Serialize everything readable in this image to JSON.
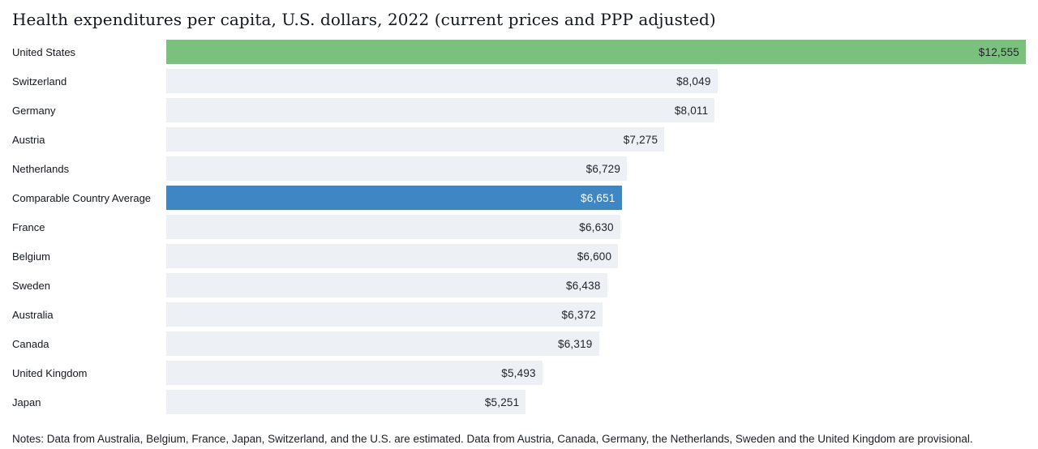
{
  "title": "Health expenditures per capita, U.S. dollars, 2022 (current prices and PPP adjusted)",
  "notes": "Notes: Data from Australia, Belgium, France, Japan, Switzerland, and the U.S. are estimated. Data from Austria, Canada, Germany, the Netherlands, Sweden and the United Kingdom are provisional.",
  "chart_data": {
    "type": "bar",
    "orientation": "horizontal",
    "title": "Health expenditures per capita, U.S. dollars, 2022 (current prices and PPP adjusted)",
    "categories": [
      "United States",
      "Switzerland",
      "Germany",
      "Austria",
      "Netherlands",
      "Comparable Country Average",
      "France",
      "Belgium",
      "Sweden",
      "Australia",
      "Canada",
      "United Kingdom",
      "Japan"
    ],
    "values": [
      12555,
      8049,
      8011,
      7275,
      6729,
      6651,
      6630,
      6600,
      6438,
      6372,
      6319,
      5493,
      5251
    ],
    "value_labels": [
      "$12,555",
      "$8,049",
      "$8,011",
      "$7,275",
      "$6,729",
      "$6,651",
      "$6,630",
      "$6,600",
      "$6,438",
      "$6,372",
      "$6,319",
      "$5,493",
      "$5,251"
    ],
    "bar_colors": [
      "green",
      "gray",
      "gray",
      "gray",
      "gray",
      "blue",
      "gray",
      "gray",
      "gray",
      "gray",
      "gray",
      "gray",
      "gray"
    ],
    "xlim": [
      0,
      12555
    ],
    "grid": false,
    "legend": "none",
    "value_label_position": "inside-end"
  },
  "colors": {
    "green": "#7bc17e",
    "blue": "#3e86c4",
    "gray": "#edf0f4",
    "title_text": "#14171c",
    "category_text": "#14171c",
    "value_text": "#21252b",
    "value_text_on": {
      "green": "#21252b",
      "blue": "#ffffff",
      "gray": "#21252b"
    },
    "background": "#ffffff"
  }
}
